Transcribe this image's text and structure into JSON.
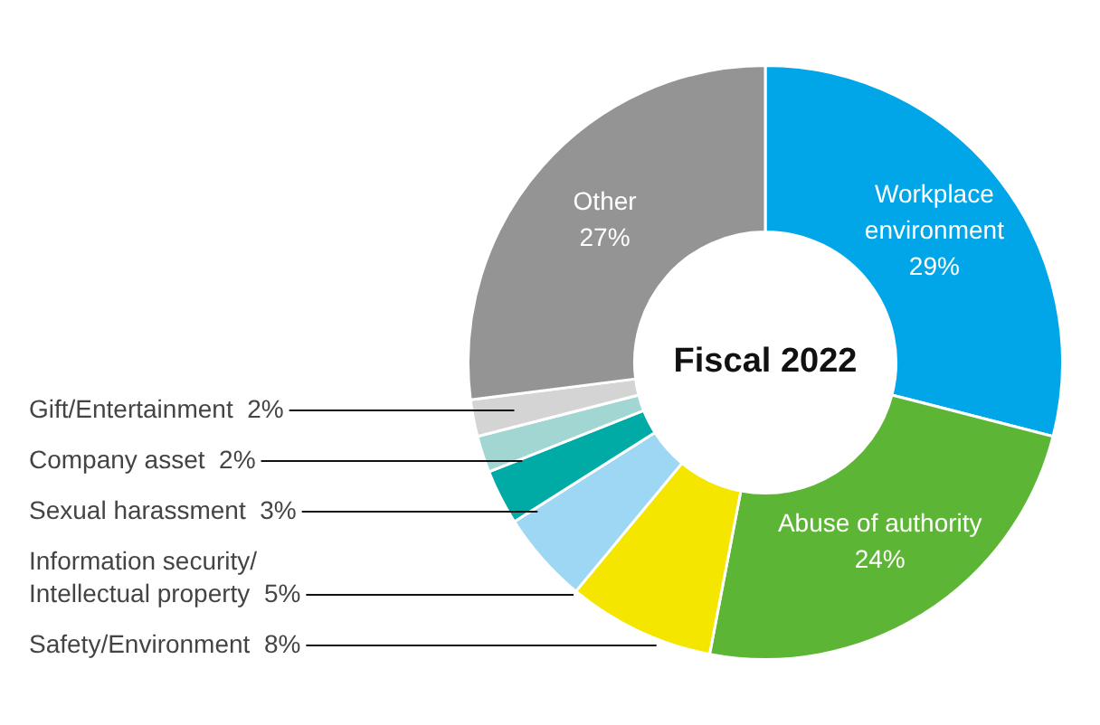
{
  "chart_data": {
    "type": "donut",
    "title": "Fiscal 2022",
    "categories": [
      "Workplace\nenvironment",
      "Abuse of authority",
      "Safety/Environment",
      "Information security/\nIntellectual property",
      "Sexual harassment",
      "Company asset",
      "Gift/Entertainment",
      "Other"
    ],
    "values": [
      29,
      24,
      8,
      5,
      3,
      2,
      2,
      27
    ],
    "colors": [
      "#00a6e8",
      "#5db535",
      "#f5e600",
      "#9dd7f3",
      "#00aba5",
      "#a2d6d3",
      "#d4d4d4",
      "#949494"
    ],
    "value_labels": [
      "29%",
      "24%",
      "8%",
      "5%",
      "3%",
      "2%",
      "2%",
      "27%"
    ],
    "legend": false
  }
}
